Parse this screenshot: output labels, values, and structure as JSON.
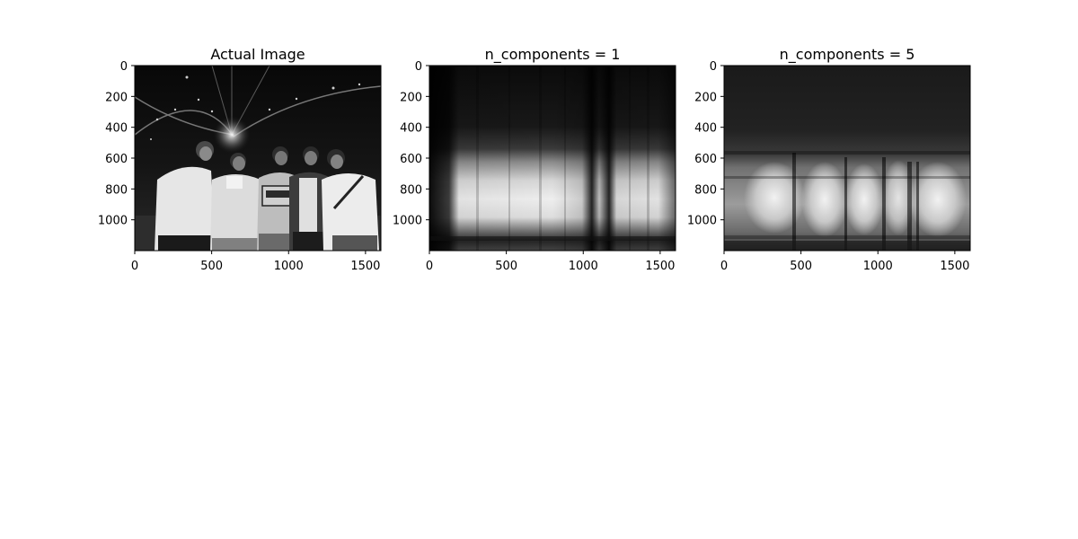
{
  "chart_data": [
    {
      "type": "heatmap",
      "title": "Actual Image",
      "colormap": "gray",
      "xlim": [
        0,
        1600
      ],
      "ylim": [
        1200,
        0
      ],
      "xticks": [
        0,
        500,
        1000,
        1500
      ],
      "yticks": [
        0,
        200,
        400,
        600,
        800,
        1000
      ],
      "xtick_labels": [
        "0",
        "500",
        "1000",
        "1500"
      ],
      "ytick_labels": [
        "0",
        "200",
        "400",
        "600",
        "800",
        "1000"
      ]
    },
    {
      "type": "heatmap",
      "title": "n_components = 1",
      "colormap": "gray",
      "xlim": [
        0,
        1600
      ],
      "ylim": [
        1200,
        0
      ],
      "xticks": [
        0,
        500,
        1000,
        1500
      ],
      "yticks": [
        0,
        200,
        400,
        600,
        800,
        1000
      ],
      "xtick_labels": [
        "0",
        "500",
        "1000",
        "1500"
      ],
      "ytick_labels": [
        "0",
        "200",
        "400",
        "600",
        "800",
        "1000"
      ]
    },
    {
      "type": "heatmap",
      "title": "n_components = 5",
      "colormap": "gray",
      "xlim": [
        0,
        1600
      ],
      "ylim": [
        1200,
        0
      ],
      "xticks": [
        0,
        500,
        1000,
        1500
      ],
      "yticks": [
        0,
        200,
        400,
        600,
        800,
        1000
      ],
      "xtick_labels": [
        "0",
        "500",
        "1000",
        "1500"
      ],
      "ytick_labels": [
        "0",
        "200",
        "400",
        "600",
        "800",
        "1000"
      ]
    }
  ]
}
